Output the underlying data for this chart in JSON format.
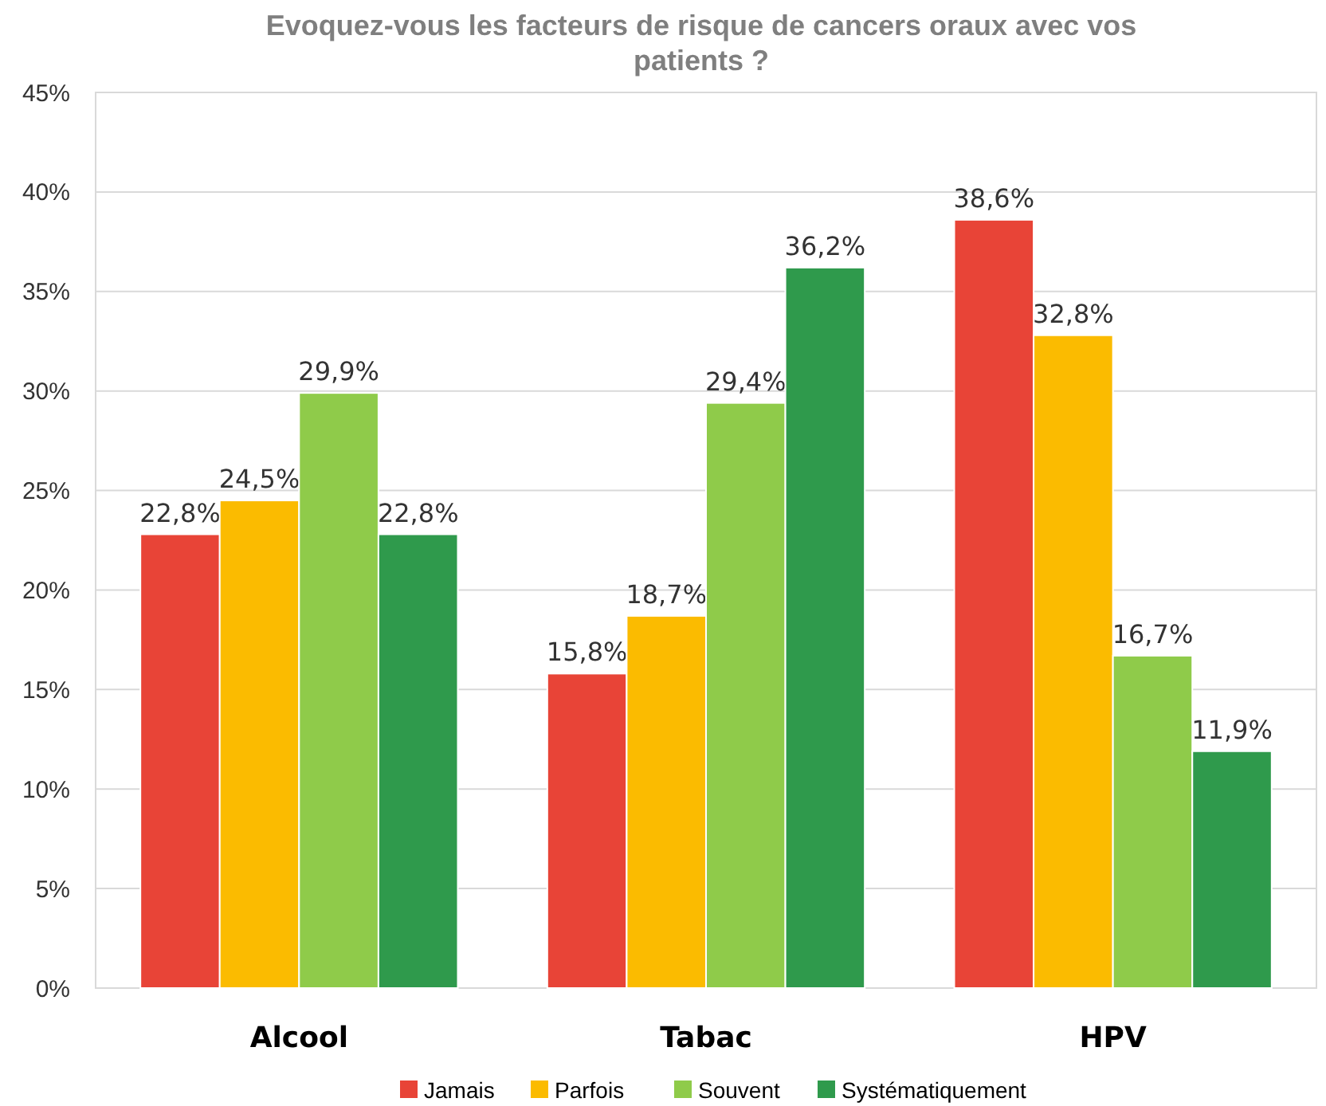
{
  "chart_data": {
    "type": "bar",
    "title": "Evoquez-vous les facteurs de risque de cancers oraux avec vos patients ?",
    "categories": [
      "Alcool",
      "Tabac",
      "HPV"
    ],
    "series": [
      {
        "name": "Jamais",
        "color": "#e84437",
        "values": [
          22.8,
          15.8,
          38.6
        ],
        "value_labels": [
          "22,8%",
          "15,8%",
          "38,6%"
        ]
      },
      {
        "name": "Parfois",
        "color": "#fbbb00",
        "values": [
          24.5,
          18.7,
          32.8
        ],
        "value_labels": [
          "24,5%",
          "18,7%",
          "32,8%"
        ]
      },
      {
        "name": "Souvent",
        "color": "#8fcb4a",
        "values": [
          29.9,
          29.4,
          16.7
        ],
        "value_labels": [
          "29,9%",
          "29,4%",
          "16,7%"
        ]
      },
      {
        "name": "Systématiquement",
        "color": "#2f9a4c",
        "values": [
          22.8,
          36.2,
          11.9
        ],
        "value_labels": [
          "22,8%",
          "36,2%",
          "11,9%"
        ]
      }
    ],
    "ylim": [
      0,
      45
    ],
    "yticks": [
      {
        "value": 0,
        "label": "0%"
      },
      {
        "value": 5,
        "label": "5%"
      },
      {
        "value": 10,
        "label": "10%"
      },
      {
        "value": 15,
        "label": "15%"
      },
      {
        "value": 20,
        "label": "20%"
      },
      {
        "value": 25,
        "label": "25%"
      },
      {
        "value": 30,
        "label": "30%"
      },
      {
        "value": 35,
        "label": "35%"
      },
      {
        "value": 40,
        "label": "40%"
      },
      {
        "value": 45,
        "label": "45%"
      }
    ],
    "grid": "y",
    "legend": "bottom"
  }
}
